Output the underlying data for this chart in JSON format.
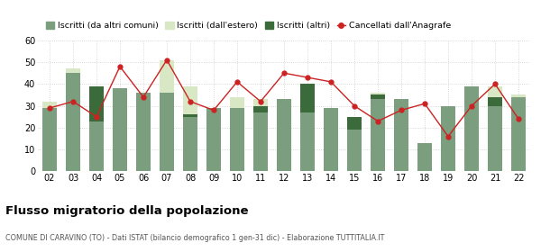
{
  "years": [
    "02",
    "03",
    "04",
    "05",
    "06",
    "07",
    "08",
    "09",
    "10",
    "11",
    "12",
    "13",
    "14",
    "15",
    "16",
    "17",
    "18",
    "19",
    "20",
    "21",
    "22"
  ],
  "iscritti_comuni": [
    29,
    45,
    23,
    38,
    36,
    36,
    25,
    29,
    29,
    27,
    33,
    27,
    29,
    19,
    33,
    33,
    13,
    30,
    39,
    30,
    34
  ],
  "iscritti_estero": [
    3,
    2,
    2,
    0,
    0,
    15,
    14,
    0,
    5,
    6,
    0,
    3,
    0,
    0,
    3,
    0,
    0,
    0,
    0,
    9,
    1
  ],
  "iscritti_altri": [
    0,
    0,
    16,
    0,
    0,
    0,
    1,
    0,
    0,
    3,
    0,
    13,
    0,
    6,
    2,
    0,
    0,
    0,
    0,
    4,
    0
  ],
  "cancellati": [
    29,
    32,
    25,
    48,
    34,
    51,
    32,
    28,
    41,
    32,
    45,
    43,
    41,
    30,
    23,
    28,
    31,
    16,
    30,
    40,
    24
  ],
  "color_comuni": "#7a9e7e",
  "color_estero": "#d9e8c4",
  "color_altri": "#3b6b3b",
  "color_cancellati": "#cc2222",
  "title": "Flusso migratorio della popolazione",
  "subtitle": "COMUNE DI CARAVINO (TO) - Dati ISTAT (bilancio demografico 1 gen-31 dic) - Elaborazione TUTTITALIA.IT",
  "legend_labels": [
    "Iscritti (da altri comuni)",
    "Iscritti (dall'estero)",
    "Iscritti (altri)",
    "Cancellati dall'Anagrafe"
  ],
  "ylim": [
    0,
    60
  ],
  "yticks": [
    0,
    10,
    20,
    30,
    40,
    50,
    60
  ]
}
